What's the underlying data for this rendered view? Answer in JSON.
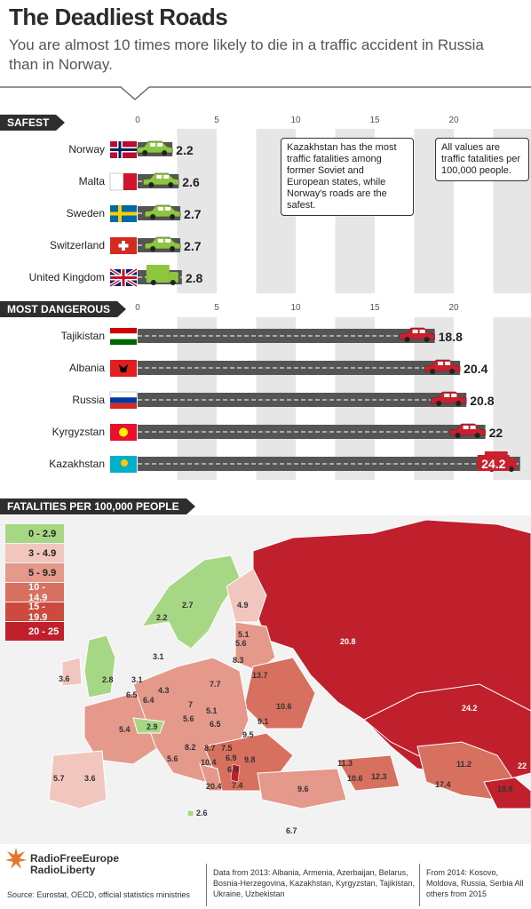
{
  "title": "The Deadliest Roads",
  "subtitle": "You are almost 10 times more likely to die in a traffic accident in Russia than in Norway.",
  "chart_data": [
    {
      "type": "bar",
      "section": "SAFEST",
      "categories": [
        "Norway",
        "Malta",
        "Sweden",
        "Switzerland",
        "United Kingdom"
      ],
      "values": [
        2.2,
        2.6,
        2.7,
        2.7,
        2.8
      ],
      "value_labels": [
        "2.2",
        "2.6",
        "2.7",
        "2.7",
        "2.8"
      ],
      "ticks": [
        "0",
        "5",
        "10",
        "15",
        "20"
      ],
      "xlim": [
        0,
        24
      ]
    },
    {
      "type": "bar",
      "section": "MOST DANGEROUS",
      "categories": [
        "Tajikistan",
        "Albania",
        "Russia",
        "Kyrgyzstan",
        "Kazakhstan"
      ],
      "values": [
        18.8,
        20.4,
        20.8,
        22,
        24.2
      ],
      "value_labels": [
        "18.8",
        "20.4",
        "20.8",
        "22",
        "24.2"
      ],
      "ticks": [
        "0",
        "5",
        "10",
        "15",
        "20"
      ],
      "xlim": [
        0,
        24
      ]
    }
  ],
  "notes": {
    "kazakhstan": "Kazakhstan has the most traffic fatalities among former Soviet and European states, while Norway's roads are the safest.",
    "units": "All values are traffic fatalities per 100,000 people."
  },
  "map": {
    "section": "FATALITIES PER 100,000 PEOPLE",
    "legend": [
      {
        "label": "0 - 2.9",
        "color": "#a6d785"
      },
      {
        "label": "3 - 4.9",
        "color": "#f1c6bd"
      },
      {
        "label": "5 - 9.9",
        "color": "#e5998b"
      },
      {
        "label": "10 - 14.9",
        "color": "#d8705f"
      },
      {
        "label": "15 - 19.9",
        "color": "#cc4a3e"
      },
      {
        "label": "20 - 25",
        "color": "#c0202c"
      }
    ],
    "values": [
      "2.7",
      "2.2",
      "4.9",
      "5.1",
      "5.6",
      "8.3",
      "3.1",
      "20.8",
      "13.7",
      "3.6",
      "2.8",
      "3.1",
      "4.3",
      "7.7",
      "6.5",
      "6.4",
      "7",
      "10.6",
      "5.4",
      "2.9",
      "5.1",
      "5.6",
      "6.5",
      "9.1",
      "9.5",
      "8.2",
      "8.7",
      "7.5",
      "10.4",
      "6.9",
      "6.9",
      "9.8",
      "24.2",
      "11.3",
      "10.6",
      "12.3",
      "11.2",
      "22",
      "5.6",
      "5.7",
      "3.6",
      "20.4",
      "7.4",
      "9.6",
      "17.4",
      "18.8",
      "2.6",
      "6.7"
    ]
  },
  "logo": {
    "line1": "RadioFreeEurope",
    "line2": "RadioLiberty"
  },
  "source": "Source: Eurostat, OECD, official statistics ministries",
  "footnote1": "Data from 2013: Albania, Armenia, Azerbaijan, Belarus, Bosnia-Herzegovina, Kazakhstan, Kyrgyzstan, Tajikistan, Ukraine, Uzbekistan",
  "footnote2": "From 2014: Kosovo, Moldova, Russia, Serbia All others from 2015",
  "colors": {
    "bar": "#555555",
    "green_car": "#8cc63f",
    "red_car": "#c8202c",
    "grid": "#e6e6e6"
  }
}
